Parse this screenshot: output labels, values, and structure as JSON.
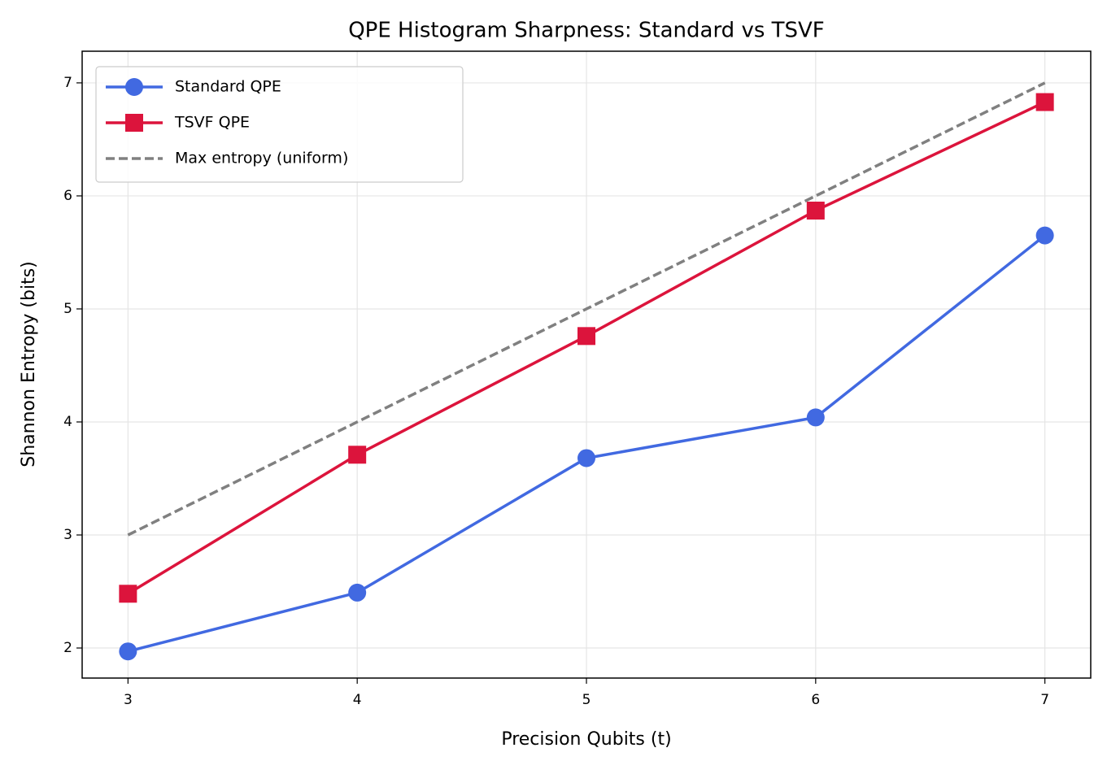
{
  "chart_data": {
    "type": "line",
    "title": "QPE Histogram Sharpness: Standard vs TSVF",
    "x_label": "Precision Qubits (t)",
    "y_label": "Shannon Entropy (bits)",
    "x": [
      3,
      4,
      5,
      6,
      7
    ],
    "series": [
      {
        "name": "Standard QPE",
        "color": "#4169e1",
        "marker": "circle",
        "values": [
          1.97,
          2.49,
          3.68,
          4.04,
          5.65
        ]
      },
      {
        "name": "TSVF QPE",
        "color": "#dc143c",
        "marker": "square",
        "values": [
          2.48,
          3.71,
          4.76,
          5.87,
          6.83
        ]
      },
      {
        "name": "Max entropy (uniform)",
        "color": "#808080",
        "dashed": true,
        "values": [
          3,
          4,
          5,
          6,
          7
        ]
      }
    ],
    "xlim": [
      2.8,
      7.2
    ],
    "ylim": [
      1.734,
      7.28
    ],
    "xticks": [
      3,
      4,
      5,
      6,
      7
    ],
    "yticks": [
      2,
      3,
      4,
      5,
      6,
      7
    ],
    "grid": true,
    "legend": "upper-left"
  }
}
